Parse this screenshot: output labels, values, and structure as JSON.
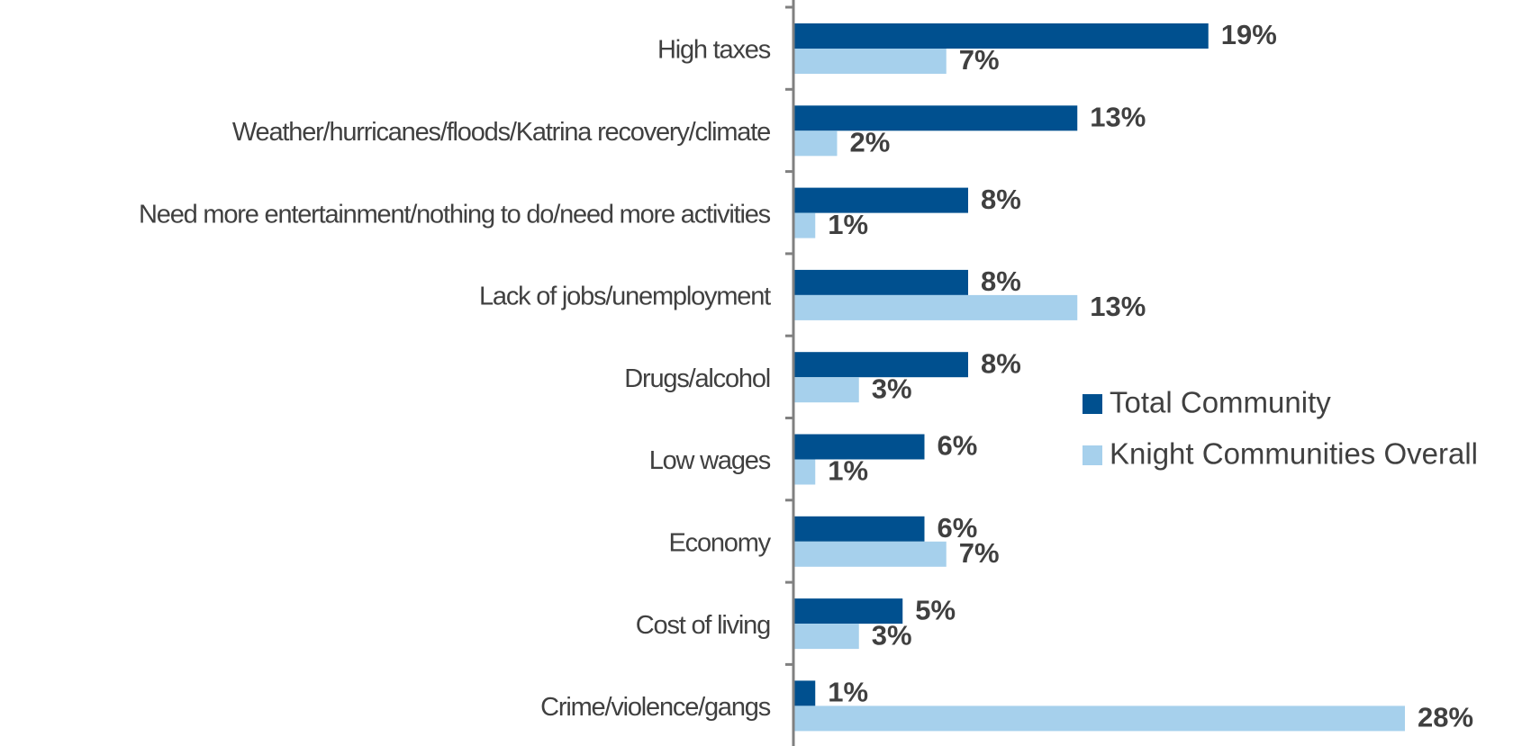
{
  "chart_data": {
    "type": "bar",
    "orientation": "horizontal",
    "categories": [
      "High taxes",
      "Weather/hurricanes/floods/Katrina recovery/climate",
      "Need more entertainment/nothing to do/need more activities",
      "Lack of jobs/unemployment",
      "Drugs/alcohol",
      "Low wages",
      "Economy",
      "Cost of living",
      "Crime/violence/gangs"
    ],
    "series": [
      {
        "name": "Total Community",
        "color": "#00508F",
        "values": [
          19,
          13,
          8,
          8,
          8,
          6,
          6,
          5,
          1
        ],
        "labels": [
          "19%",
          "13%",
          "8%",
          "8%",
          "8%",
          "6%",
          "6%",
          "5%",
          "1%"
        ]
      },
      {
        "name": "Knight Communities Overall",
        "color": "#A6D0EC",
        "values": [
          7,
          2,
          1,
          13,
          3,
          1,
          7,
          3,
          28
        ],
        "labels": [
          "7%",
          "2%",
          "1%",
          "13%",
          "3%",
          "1%",
          "7%",
          "3%",
          "28%"
        ]
      }
    ],
    "xlim": [
      0,
      30
    ],
    "grid": false,
    "legend_position": "right",
    "axis_color": "#808080",
    "label_color": "#404040"
  }
}
